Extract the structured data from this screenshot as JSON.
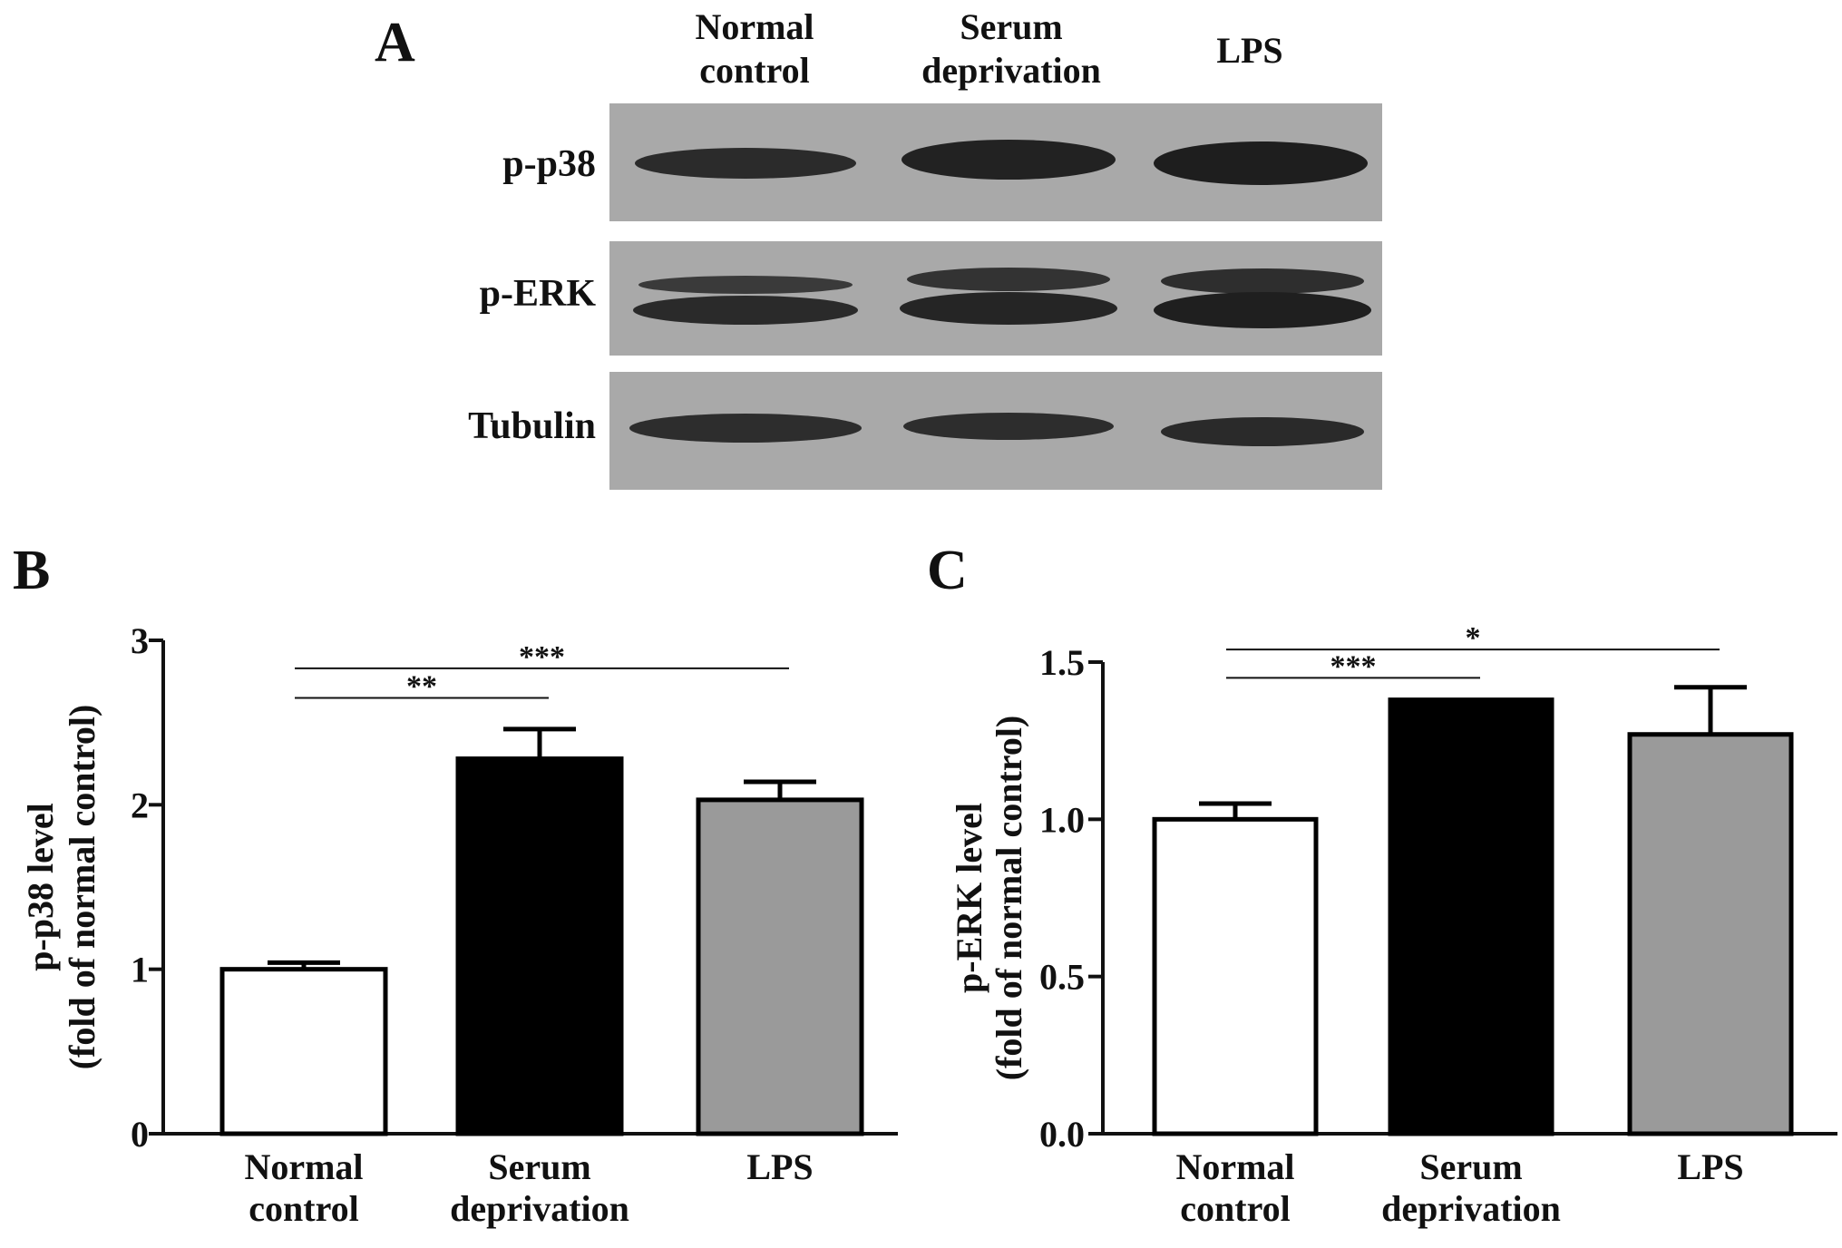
{
  "panels": {
    "a": "A",
    "b": "B",
    "c": "C"
  },
  "blot": {
    "lanes": [
      {
        "line1": "Normal",
        "line2": "control"
      },
      {
        "line1": "Serum",
        "line2": "deprivation"
      },
      {
        "line1": "LPS",
        "line2": ""
      }
    ],
    "rows": [
      "p-p38",
      "p-ERK",
      "Tubulin"
    ],
    "colors": {
      "membrane": "#a9a9a9",
      "band": "#2b2b2b"
    }
  },
  "chart_data": [
    {
      "type": "bar",
      "panel": "B",
      "categories": [
        {
          "line1": "Normal",
          "line2": "control"
        },
        {
          "line1": "Serum",
          "line2": "deprivation"
        },
        {
          "line1": "LPS",
          "line2": ""
        }
      ],
      "values": [
        1.0,
        2.28,
        2.03
      ],
      "errors": [
        0.04,
        0.18,
        0.11
      ],
      "bar_colors": [
        "#ffffff",
        "#000000",
        "#9a9a9a"
      ],
      "ylabel_line1": "p-p38 level",
      "ylabel_line2": "(fold of normal control)",
      "ylim": [
        0,
        3
      ],
      "yticks": [
        "0",
        "1",
        "2",
        "3"
      ],
      "ytick_values": [
        0,
        1,
        2,
        3
      ],
      "significance": [
        {
          "from": 0,
          "to": 1,
          "label": "**",
          "level": 2.65
        },
        {
          "from": 0,
          "to": 2,
          "label": "***",
          "level": 2.83
        }
      ]
    },
    {
      "type": "bar",
      "panel": "C",
      "categories": [
        {
          "line1": "Normal",
          "line2": "control"
        },
        {
          "line1": "Serum",
          "line2": "deprivation"
        },
        {
          "line1": "LPS",
          "line2": ""
        }
      ],
      "values": [
        1.0,
        1.38,
        1.27
      ],
      "errors": [
        0.05,
        0.0,
        0.15
      ],
      "bar_colors": [
        "#ffffff",
        "#000000",
        "#9a9a9a"
      ],
      "ylabel_line1": "p-ERK level",
      "ylabel_line2": "(fold of normal control)",
      "ylim": [
        0,
        1.5
      ],
      "yticks": [
        "0.0",
        "0.5",
        "1.0",
        "1.5"
      ],
      "ytick_values": [
        0,
        0.5,
        1.0,
        1.5
      ],
      "significance": [
        {
          "from": 0,
          "to": 1,
          "label": "***",
          "level": 1.45
        },
        {
          "from": 0,
          "to": 2,
          "label": "*",
          "level": 1.54
        }
      ]
    }
  ]
}
